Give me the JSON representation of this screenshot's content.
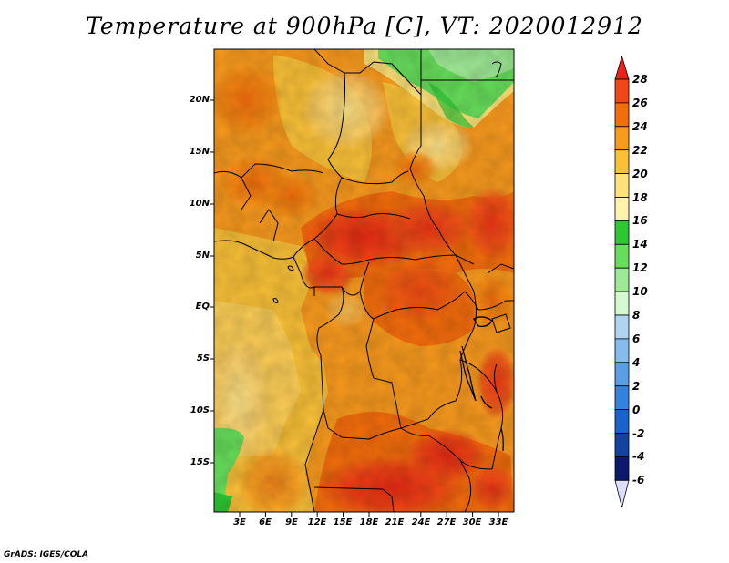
{
  "title": "Temperature at 900hPa [C], VT: 2020012912",
  "footer": "GrADS: IGES/COLA",
  "map": {
    "lat_labels": [
      "20N",
      "15N",
      "10N",
      "5N",
      "EQ",
      "5S",
      "10S",
      "15S"
    ],
    "lon_labels": [
      "3E",
      "6E",
      "9E",
      "12E",
      "15E",
      "18E",
      "21E",
      "24E",
      "27E",
      "30E",
      "33E"
    ]
  },
  "colorbar": {
    "labels": [
      "28",
      "26",
      "24",
      "22",
      "20",
      "18",
      "16",
      "14",
      "12",
      "10",
      "8",
      "6",
      "4",
      "2",
      "0",
      "-2",
      "-4",
      "-6"
    ],
    "colors": [
      "#f0201a",
      "#f0461a",
      "#f46d0c",
      "#f89a1e",
      "#fac138",
      "#fde27a",
      "#fef3ac",
      "#2dc733",
      "#67dd5b",
      "#9ee995",
      "#d4f8d0",
      "#aed4f2",
      "#86bbee",
      "#5a9fe6",
      "#3482dd",
      "#1a62cc",
      "#1442a0",
      "#0b1a6e",
      "#dddfff"
    ]
  }
}
